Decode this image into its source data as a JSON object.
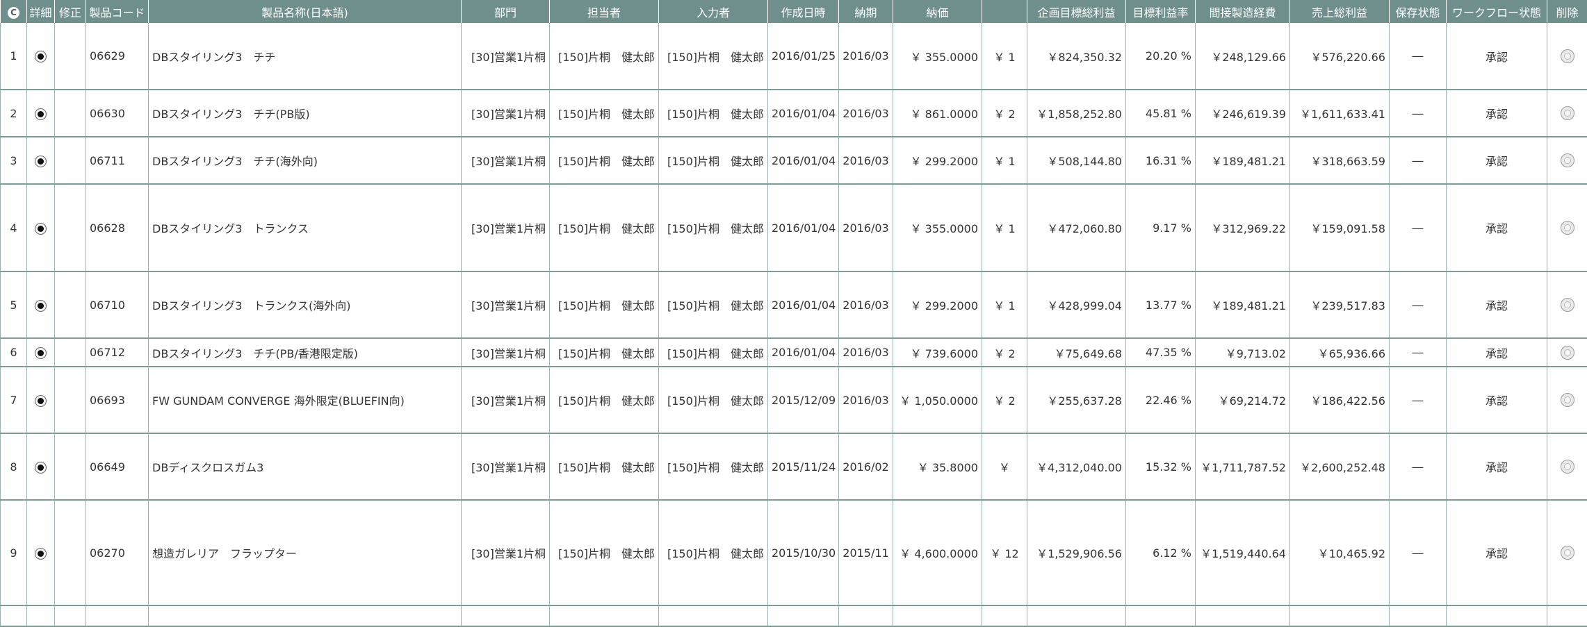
{
  "table": {
    "columns": {
      "detail": "詳細",
      "edit": "修正",
      "code": "製品コード",
      "name": "製品名称(日本語)",
      "dept": "部門",
      "manager": "担当者",
      "inputter": "入力者",
      "created": "作成日時",
      "due": "納期",
      "price": "納価",
      "plan_profit": "企画目標総利益",
      "margin": "目標利益率",
      "indirect": "間接製造経費",
      "sales_profit": "売上総利益",
      "save_state": "保存状態",
      "workflow": "ワークフロー状態",
      "delete": "削除"
    },
    "rows": [
      {
        "no": "1",
        "code": "06629",
        "name": "DBスタイリング3　チチ",
        "dept": "[30]営業1片桐",
        "manager": "[150]片桐　健太郎",
        "inputter": "[150]片桐　健太郎",
        "created": "2016/01/25",
        "due": "2016/03",
        "price": "￥ 355.0000",
        "yen": "￥ 1",
        "plan_profit": "￥824,350.32",
        "margin": "20.20 %",
        "indirect": "￥248,129.66",
        "sales_profit": "￥576,220.66",
        "save_state": "―",
        "workflow": "承認"
      },
      {
        "no": "2",
        "code": "06630",
        "name": "DBスタイリング3　チチ(PB版)",
        "dept": "[30]営業1片桐",
        "manager": "[150]片桐　健太郎",
        "inputter": "[150]片桐　健太郎",
        "created": "2016/01/04",
        "due": "2016/03",
        "price": "￥ 861.0000",
        "yen": "￥ 2",
        "plan_profit": "￥1,858,252.80",
        "margin": "45.81 %",
        "indirect": "￥246,619.39",
        "sales_profit": "￥1,611,633.41",
        "save_state": "―",
        "workflow": "承認"
      },
      {
        "no": "3",
        "code": "06711",
        "name": "DBスタイリング3　チチ(海外向)",
        "dept": "[30]営業1片桐",
        "manager": "[150]片桐　健太郎",
        "inputter": "[150]片桐　健太郎",
        "created": "2016/01/04",
        "due": "2016/03",
        "price": "￥ 299.2000",
        "yen": "￥ 1",
        "plan_profit": "￥508,144.80",
        "margin": "16.31 %",
        "indirect": "￥189,481.21",
        "sales_profit": "￥318,663.59",
        "save_state": "―",
        "workflow": "承認"
      },
      {
        "no": "4",
        "code": "06628",
        "name": "DBスタイリング3　トランクス",
        "dept": "[30]営業1片桐",
        "manager": "[150]片桐　健太郎",
        "inputter": "[150]片桐　健太郎",
        "created": "2016/01/04",
        "due": "2016/03",
        "price": "￥ 355.0000",
        "yen": "￥ 1",
        "plan_profit": "￥472,060.80",
        "margin": "9.17 %",
        "indirect": "￥312,969.22",
        "sales_profit": "￥159,091.58",
        "save_state": "―",
        "workflow": "承認"
      },
      {
        "no": "5",
        "code": "06710",
        "name": "DBスタイリング3　トランクス(海外向)",
        "dept": "[30]営業1片桐",
        "manager": "[150]片桐　健太郎",
        "inputter": "[150]片桐　健太郎",
        "created": "2016/01/04",
        "due": "2016/03",
        "price": "￥ 299.2000",
        "yen": "￥ 1",
        "plan_profit": "￥428,999.04",
        "margin": "13.77 %",
        "indirect": "￥189,481.21",
        "sales_profit": "￥239,517.83",
        "save_state": "―",
        "workflow": "承認"
      },
      {
        "no": "6",
        "code": "06712",
        "name": "DBスタイリング3　チチ(PB/香港限定版)",
        "dept": "[30]営業1片桐",
        "manager": "[150]片桐　健太郎",
        "inputter": "[150]片桐　健太郎",
        "created": "2016/01/04",
        "due": "2016/03",
        "price": "￥ 739.6000",
        "yen": "￥ 2",
        "plan_profit": "￥75,649.68",
        "margin": "47.35 %",
        "indirect": "￥9,713.02",
        "sales_profit": "￥65,936.66",
        "save_state": "―",
        "workflow": "承認"
      },
      {
        "no": "7",
        "code": "06693",
        "name": "FW GUNDAM CONVERGE 海外限定(BLUEFIN向)",
        "dept": "[30]営業1片桐",
        "manager": "[150]片桐　健太郎",
        "inputter": "[150]片桐　健太郎",
        "created": "2015/12/09",
        "due": "2016/03",
        "price": "￥ 1,050.0000",
        "yen": "￥ 2",
        "plan_profit": "￥255,637.28",
        "margin": "22.46 %",
        "indirect": "￥69,214.72",
        "sales_profit": "￥186,422.56",
        "save_state": "―",
        "workflow": "承認"
      },
      {
        "no": "8",
        "code": "06649",
        "name": "DBディスクロスガム3",
        "dept": "[30]営業1片桐",
        "manager": "[150]片桐　健太郎",
        "inputter": "[150]片桐　健太郎",
        "created": "2015/11/24",
        "due": "2016/02",
        "price": "￥ 35.8000",
        "yen": "￥",
        "plan_profit": "￥4,312,040.00",
        "margin": "15.32 %",
        "indirect": "￥1,711,787.52",
        "sales_profit": "￥2,600,252.48",
        "save_state": "―",
        "workflow": "承認"
      },
      {
        "no": "9",
        "code": "06270",
        "name": "想造ガレリア　フラップター",
        "dept": "[30]営業1片桐",
        "manager": "[150]片桐　健太郎",
        "inputter": "[150]片桐　健太郎",
        "created": "2015/10/30",
        "due": "2015/11",
        "price": "￥ 4,600.0000",
        "yen": "￥ 12",
        "plan_profit": "￥1,529,906.56",
        "margin": "6.12 %",
        "indirect": "￥1,519,440.64",
        "sales_profit": "￥10,465.92",
        "save_state": "―",
        "workflow": "承認"
      }
    ]
  }
}
